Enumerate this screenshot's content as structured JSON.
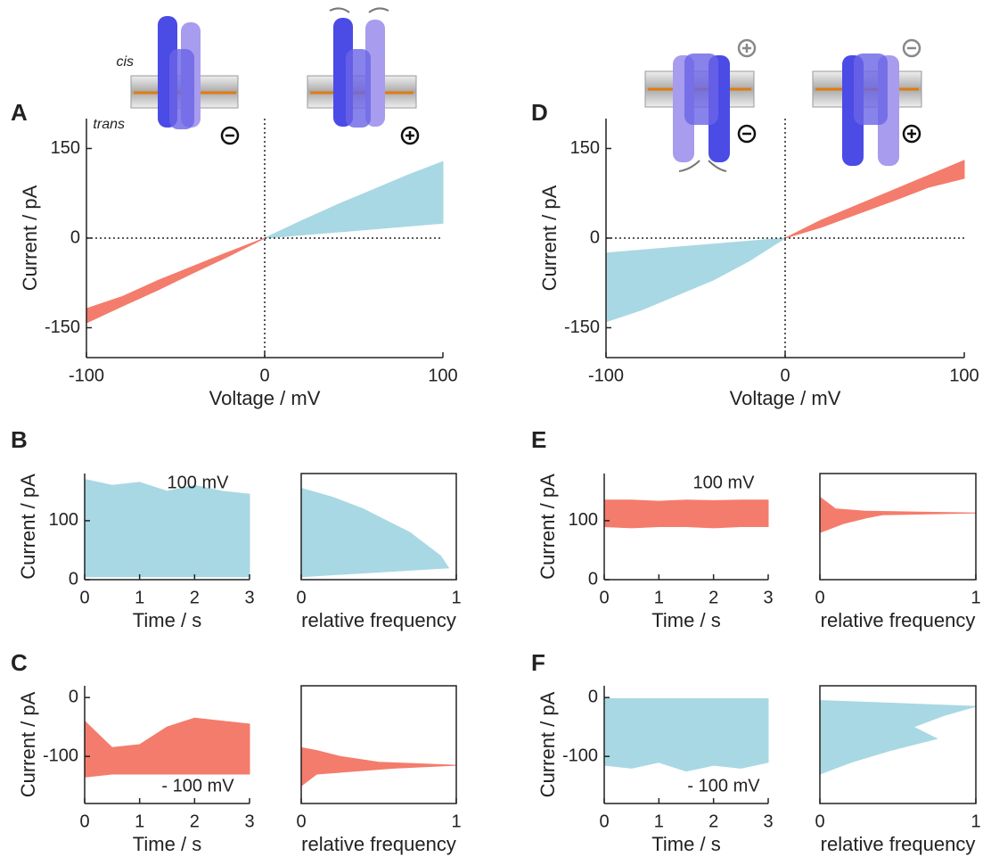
{
  "chart_data": [
    {
      "type": "band",
      "panel": "A",
      "annotations": [
        "cis",
        "trans"
      ],
      "x_label": "Voltage / mV",
      "y_label": "Current / pA",
      "xlim": [
        -100,
        100
      ],
      "xticks": [
        -100,
        0,
        100
      ],
      "ylim": [
        -200,
        200
      ],
      "yticks": [
        -150,
        0,
        150
      ],
      "zero_lines": true,
      "series": [
        {
          "color": "#f47c6c",
          "x": [
            -100,
            -80,
            -60,
            -40,
            -20,
            0
          ],
          "low": [
            -142,
            -114,
            -87,
            -58,
            -30,
            0
          ],
          "high": [
            -118,
            -98,
            -71,
            -47,
            -23,
            0
          ]
        },
        {
          "color": "#a8d8e3",
          "x": [
            0,
            20,
            40,
            60,
            80,
            100
          ],
          "low": [
            0,
            5,
            10,
            15,
            20,
            25
          ],
          "high": [
            0,
            28,
            55,
            80,
            105,
            128
          ]
        }
      ]
    },
    {
      "type": "band",
      "panel": "B",
      "annotation": "100 mV",
      "x_label": "Time / s",
      "y_label": "Current / pA",
      "xlim": [
        0,
        3
      ],
      "xticks": [
        0,
        1,
        2,
        3
      ],
      "ylim": [
        0,
        180
      ],
      "yticks": [
        0,
        100
      ],
      "series": [
        {
          "color": "#a8d8e3",
          "x": [
            0,
            0.5,
            1,
            1.5,
            2,
            2.5,
            3
          ],
          "low": [
            5,
            5,
            5,
            5,
            5,
            5,
            5
          ],
          "high": [
            170,
            160,
            165,
            150,
            160,
            150,
            145
          ]
        }
      ]
    },
    {
      "type": "area",
      "x_label": "relative frequency",
      "frame": true,
      "xlim": [
        0,
        1
      ],
      "xticks": [
        0,
        1
      ],
      "ylim": [
        0,
        180
      ],
      "series": [
        {
          "color": "#a8d8e3",
          "y": [
            5,
            20,
            40,
            60,
            80,
            100,
            120,
            140,
            155
          ],
          "values": [
            0,
            0.95,
            0.9,
            0.8,
            0.7,
            0.55,
            0.4,
            0.2,
            0
          ]
        }
      ]
    },
    {
      "type": "band",
      "panel": "C",
      "annotation": "- 100 mV",
      "x_label": "Time / s",
      "y_label": "Current / pA",
      "xlim": [
        0,
        3
      ],
      "xticks": [
        0,
        1,
        2,
        3
      ],
      "ylim": [
        -180,
        20
      ],
      "yticks": [
        0,
        -100
      ],
      "series": [
        {
          "color": "#f47c6c",
          "x": [
            0,
            0.5,
            1,
            1.5,
            2,
            2.5,
            3
          ],
          "low": [
            -135,
            -130,
            -130,
            -130,
            -130,
            -130,
            -130
          ],
          "high": [
            -40,
            -85,
            -80,
            -50,
            -35,
            -40,
            -45
          ]
        }
      ]
    },
    {
      "type": "area",
      "x_label": "relative frequency",
      "frame": true,
      "xlim": [
        0,
        1
      ],
      "xticks": [
        0,
        1
      ],
      "ylim": [
        -180,
        20
      ],
      "series": [
        {
          "color": "#f47c6c",
          "y": [
            -150,
            -130,
            -120,
            -115,
            -110,
            -100,
            -90,
            -85
          ],
          "values": [
            0,
            0.1,
            0.6,
            1,
            0.5,
            0.25,
            0.1,
            0
          ]
        }
      ]
    },
    {
      "type": "band",
      "panel": "D",
      "x_label": "Voltage / mV",
      "y_label": "Current / pA",
      "xlim": [
        -100,
        100
      ],
      "xticks": [
        -100,
        0,
        100
      ],
      "ylim": [
        -200,
        200
      ],
      "yticks": [
        -150,
        0,
        150
      ],
      "zero_lines": true,
      "series": [
        {
          "color": "#a8d8e3",
          "x": [
            -100,
            -80,
            -60,
            -40,
            -20,
            0
          ],
          "low": [
            -140,
            -120,
            -95,
            -70,
            -38,
            0
          ],
          "high": [
            -25,
            -20,
            -15,
            -10,
            -5,
            0
          ]
        },
        {
          "color": "#f47c6c",
          "x": [
            0,
            20,
            40,
            60,
            80,
            100
          ],
          "low": [
            0,
            18,
            40,
            62,
            85,
            100
          ],
          "high": [
            0,
            30,
            55,
            80,
            105,
            130
          ]
        }
      ]
    },
    {
      "type": "band",
      "panel": "E",
      "annotation": "100 mV",
      "x_label": "Time / s",
      "y_label": "Current / pA",
      "xlim": [
        0,
        3
      ],
      "xticks": [
        0,
        1,
        2,
        3
      ],
      "ylim": [
        0,
        180
      ],
      "yticks": [
        0,
        100
      ],
      "series": [
        {
          "color": "#f47c6c",
          "x": [
            0,
            0.5,
            1,
            1.5,
            2,
            2.5,
            3
          ],
          "low": [
            90,
            88,
            90,
            90,
            88,
            90,
            90
          ],
          "high": [
            135,
            135,
            133,
            135,
            134,
            135,
            135
          ]
        }
      ]
    },
    {
      "type": "area",
      "x_label": "relative frequency",
      "frame": true,
      "xlim": [
        0,
        1
      ],
      "xticks": [
        0,
        1
      ],
      "ylim": [
        0,
        180
      ],
      "series": [
        {
          "color": "#f47c6c",
          "y": [
            80,
            95,
            105,
            110,
            113,
            116,
            120,
            130,
            140
          ],
          "values": [
            0,
            0.15,
            0.3,
            0.4,
            1,
            0.3,
            0.1,
            0.05,
            0
          ]
        }
      ]
    },
    {
      "type": "band",
      "panel": "F",
      "annotation": "- 100 mV",
      "x_label": "Time / s",
      "y_label": "Current / pA",
      "xlim": [
        0,
        3
      ],
      "xticks": [
        0,
        1,
        2,
        3
      ],
      "ylim": [
        -180,
        20
      ],
      "yticks": [
        0,
        -100
      ],
      "series": [
        {
          "color": "#a8d8e3",
          "x": [
            0,
            0.5,
            1,
            1.5,
            2,
            2.5,
            3
          ],
          "low": [
            -115,
            -120,
            -110,
            -125,
            -115,
            -120,
            -110
          ],
          "high": [
            -2,
            -2,
            -2,
            -2,
            -2,
            -2,
            -2
          ]
        }
      ]
    },
    {
      "type": "area",
      "x_label": "relative frequency",
      "frame": true,
      "xlim": [
        0,
        1
      ],
      "xticks": [
        0,
        1
      ],
      "ylim": [
        -180,
        20
      ],
      "series": [
        {
          "color": "#a8d8e3",
          "y": [
            -130,
            -110,
            -90,
            -70,
            -50,
            -30,
            -15,
            -5
          ],
          "values": [
            0,
            0.2,
            0.45,
            0.75,
            0.6,
            0.8,
            1,
            0
          ]
        }
      ]
    }
  ]
}
